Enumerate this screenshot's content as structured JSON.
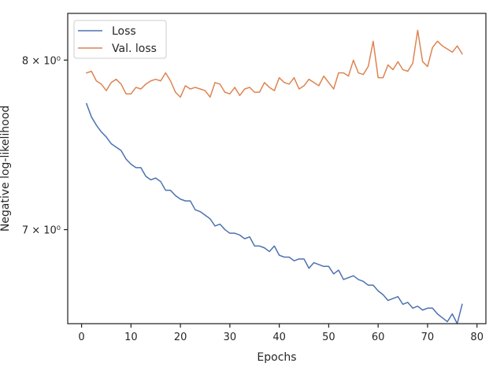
{
  "chart_data": {
    "type": "line",
    "xlabel": "Epochs",
    "ylabel": "Negative log-likelihood",
    "yscale": "log",
    "xlim": [
      -2.8,
      81.8
    ],
    "ylim": [
      6.5,
      8.3
    ],
    "x_ticks": [
      0,
      10,
      20,
      30,
      40,
      50,
      60,
      70,
      80
    ],
    "y_ticks": [
      {
        "value": 7,
        "label": "7 × 10⁰"
      },
      {
        "value": 8,
        "label": "8 × 10⁰"
      }
    ],
    "grid": false,
    "legend": "top-left",
    "x": [
      1,
      2,
      3,
      4,
      5,
      6,
      7,
      8,
      9,
      10,
      11,
      12,
      13,
      14,
      15,
      16,
      17,
      18,
      19,
      20,
      21,
      22,
      23,
      24,
      25,
      26,
      27,
      28,
      29,
      30,
      31,
      32,
      33,
      34,
      35,
      36,
      37,
      38,
      39,
      40,
      41,
      42,
      43,
      44,
      45,
      46,
      47,
      48,
      49,
      50,
      51,
      52,
      53,
      54,
      55,
      56,
      57,
      58,
      59,
      60,
      61,
      62,
      63,
      64,
      65,
      66,
      67,
      68,
      69,
      70,
      71,
      72,
      73,
      74,
      75,
      76,
      77
    ],
    "series": [
      {
        "name": "Loss",
        "color": "#4c72b0",
        "values": [
          7.73,
          7.65,
          7.6,
          7.56,
          7.53,
          7.49,
          7.47,
          7.45,
          7.4,
          7.37,
          7.35,
          7.35,
          7.3,
          7.28,
          7.29,
          7.27,
          7.22,
          7.22,
          7.19,
          7.17,
          7.16,
          7.16,
          7.11,
          7.1,
          7.08,
          7.06,
          7.02,
          7.03,
          7.0,
          6.98,
          6.98,
          6.97,
          6.95,
          6.96,
          6.91,
          6.91,
          6.9,
          6.88,
          6.91,
          6.86,
          6.85,
          6.85,
          6.83,
          6.84,
          6.84,
          6.79,
          6.82,
          6.81,
          6.8,
          6.8,
          6.76,
          6.78,
          6.73,
          6.74,
          6.75,
          6.73,
          6.72,
          6.7,
          6.7,
          6.67,
          6.65,
          6.62,
          6.63,
          6.64,
          6.6,
          6.61,
          6.58,
          6.59,
          6.57,
          6.58,
          6.58,
          6.55,
          6.53,
          6.51,
          6.55,
          6.5,
          6.6
        ]
      },
      {
        "name": "Val. loss",
        "color": "#dd8452",
        "values": [
          7.92,
          7.93,
          7.87,
          7.85,
          7.81,
          7.86,
          7.88,
          7.85,
          7.79,
          7.79,
          7.83,
          7.82,
          7.85,
          7.87,
          7.88,
          7.87,
          7.92,
          7.87,
          7.8,
          7.77,
          7.84,
          7.82,
          7.83,
          7.82,
          7.81,
          7.77,
          7.86,
          7.85,
          7.8,
          7.79,
          7.83,
          7.78,
          7.82,
          7.83,
          7.8,
          7.8,
          7.86,
          7.83,
          7.81,
          7.89,
          7.86,
          7.85,
          7.89,
          7.82,
          7.84,
          7.88,
          7.86,
          7.84,
          7.9,
          7.86,
          7.82,
          7.92,
          7.92,
          7.9,
          8.0,
          7.92,
          7.91,
          7.96,
          8.12,
          7.89,
          7.89,
          7.97,
          7.94,
          7.99,
          7.94,
          7.93,
          7.98,
          8.19,
          7.99,
          7.96,
          8.08,
          8.12,
          8.09,
          8.07,
          8.05,
          8.09,
          8.04
        ]
      }
    ]
  }
}
